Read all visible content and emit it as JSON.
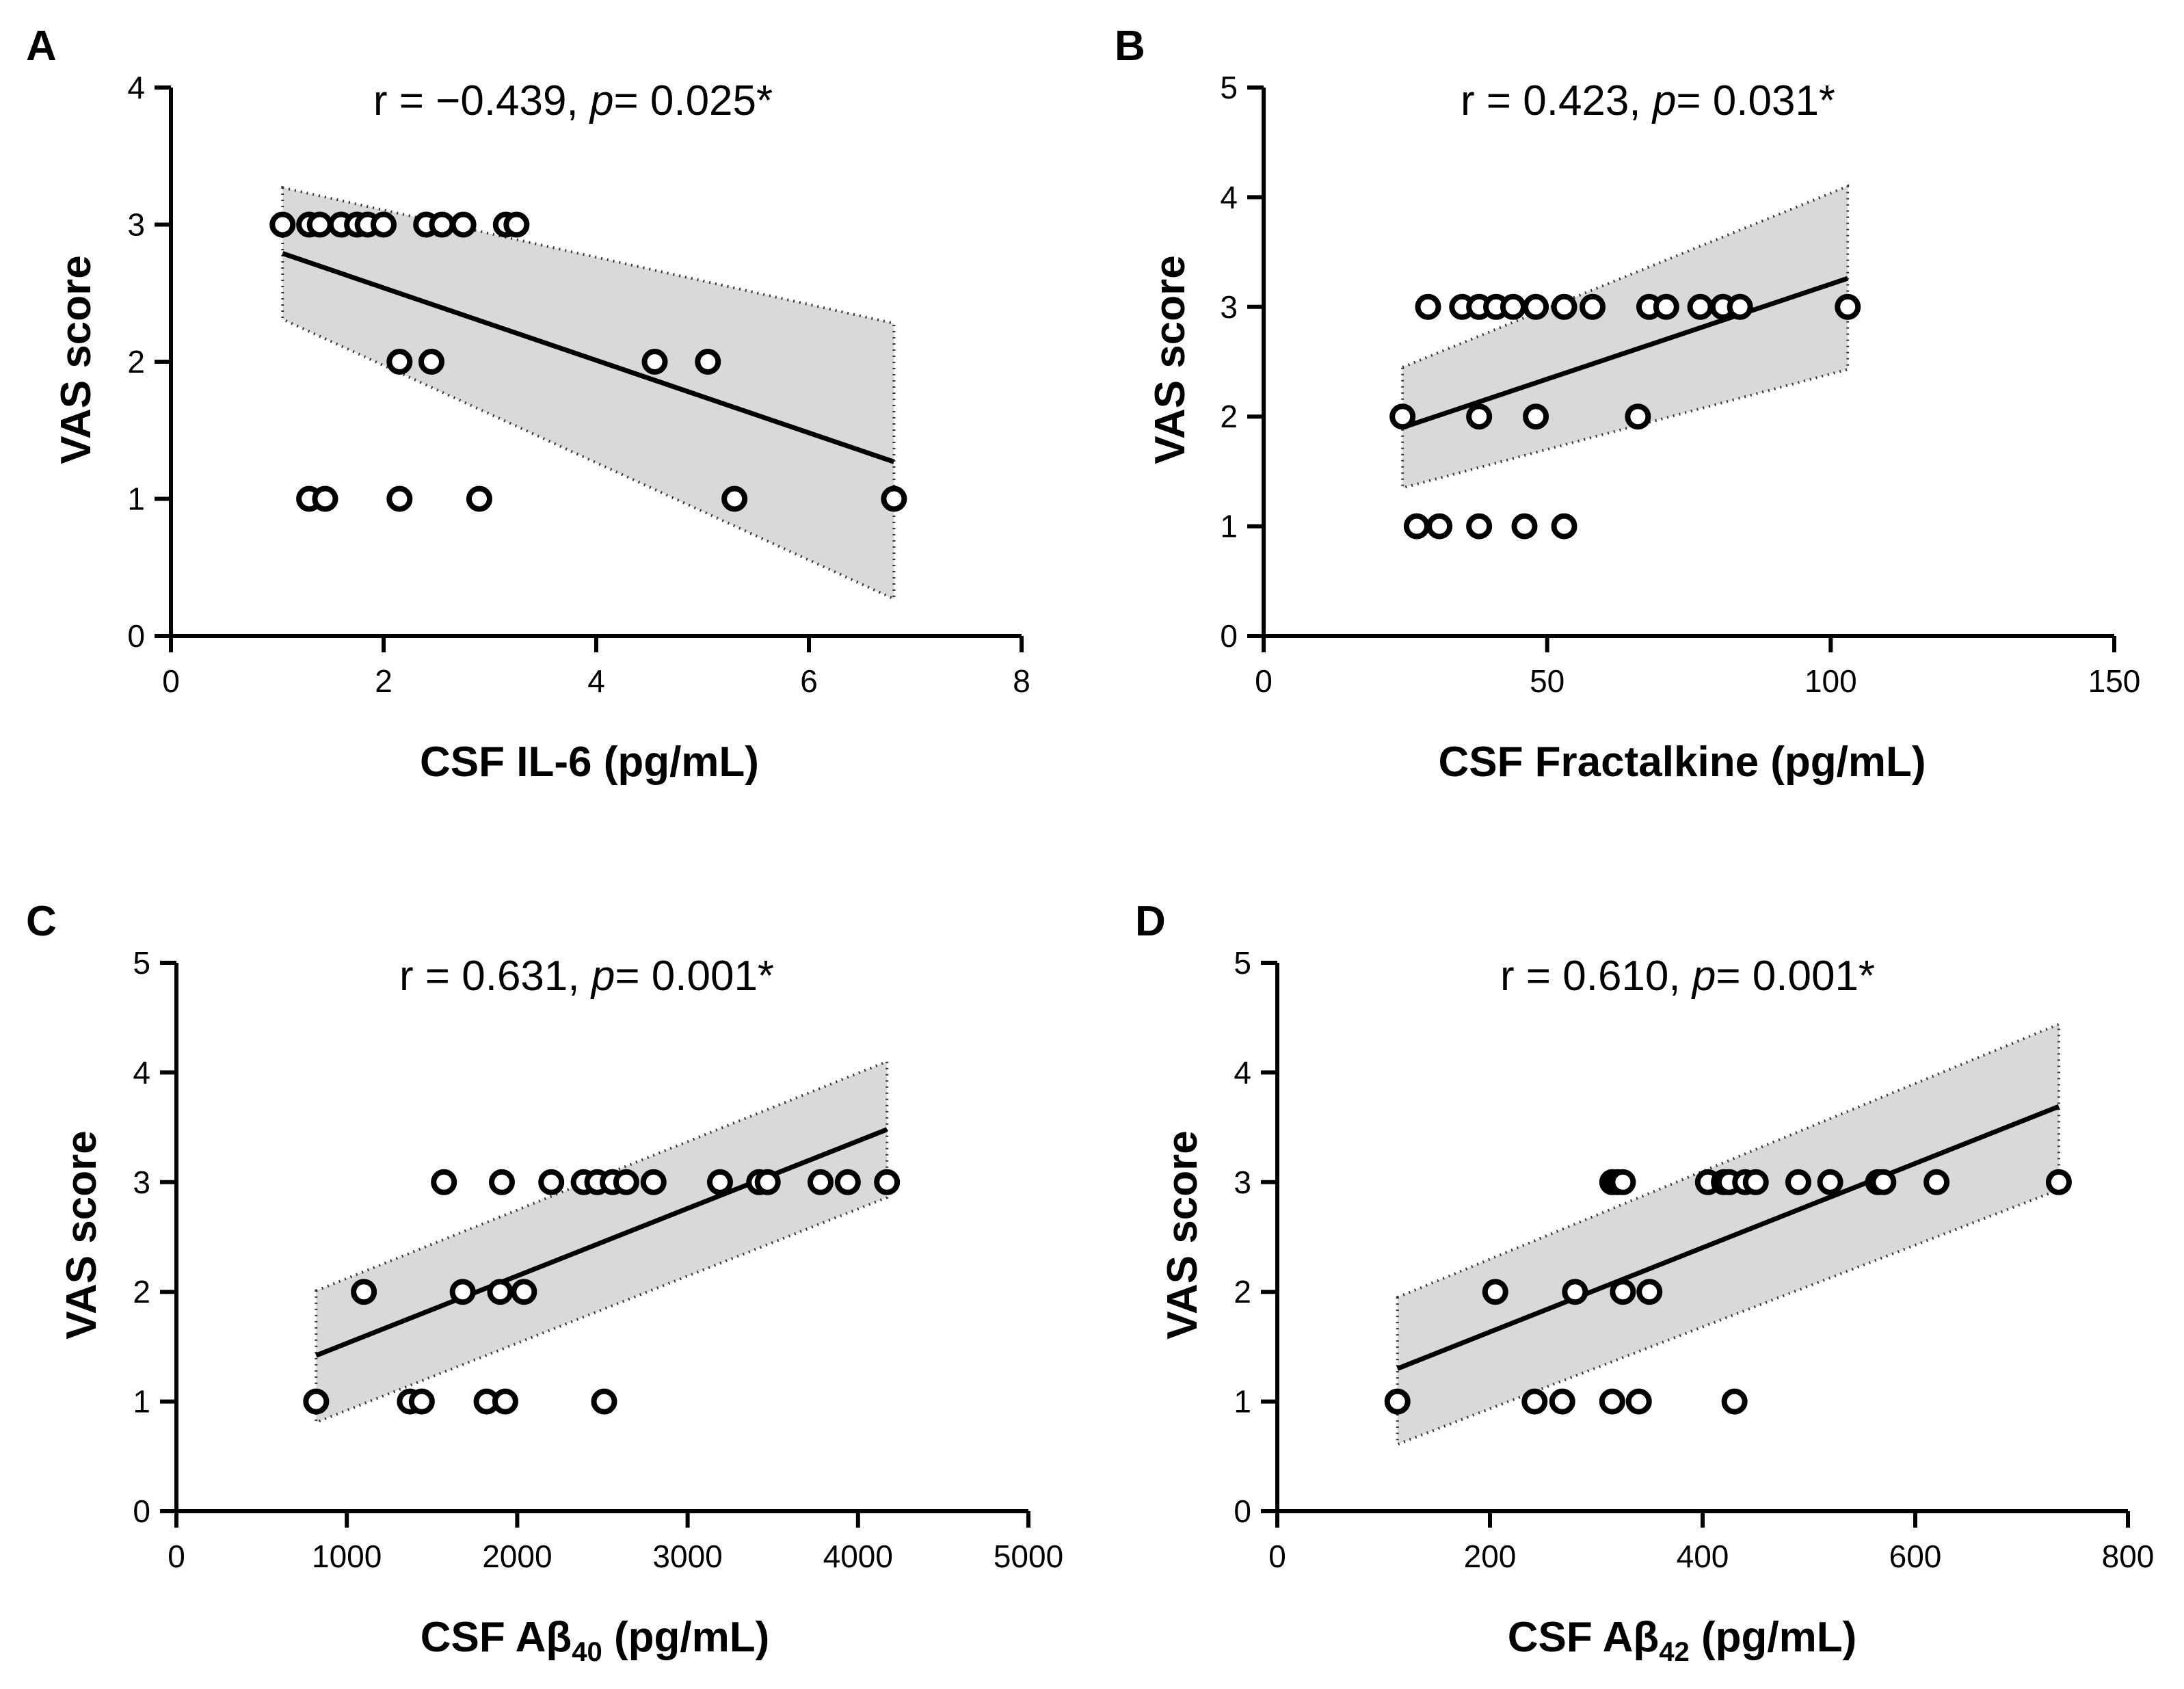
{
  "chart_data": [
    {
      "id": "A",
      "type": "scatter",
      "panel_label": "A",
      "stat_r": "r = −0.439, ",
      "stat_p": "p",
      "stat_rest": "= 0.025*",
      "xlabel": "CSF IL-6 (pg/mL)",
      "xlabel_sub": "",
      "xlabel_tail": "",
      "ylabel": "VAS score",
      "xlim": [
        0,
        8
      ],
      "ylim": [
        0,
        4
      ],
      "xticks": [
        0,
        2,
        4,
        6,
        8
      ],
      "yticks": [
        0,
        1,
        2,
        3,
        4
      ],
      "points": [
        [
          1.05,
          3
        ],
        [
          1.3,
          3
        ],
        [
          1.4,
          3
        ],
        [
          1.6,
          3
        ],
        [
          1.75,
          3
        ],
        [
          1.85,
          3
        ],
        [
          2.0,
          3
        ],
        [
          2.4,
          3
        ],
        [
          2.55,
          3
        ],
        [
          2.75,
          3
        ],
        [
          3.15,
          3
        ],
        [
          3.25,
          3
        ],
        [
          2.15,
          2
        ],
        [
          2.45,
          2
        ],
        [
          4.55,
          2
        ],
        [
          5.05,
          2
        ],
        [
          1.3,
          1
        ],
        [
          1.45,
          1
        ],
        [
          2.15,
          1
        ],
        [
          2.9,
          1
        ],
        [
          5.3,
          1
        ],
        [
          6.8,
          1
        ]
      ],
      "fit": {
        "x0": 1.05,
        "y0": 2.79,
        "x1": 6.8,
        "y1": 1.27
      },
      "band": {
        "x": [
          1.05,
          6.8
        ],
        "upper": [
          3.27,
          2.28
        ],
        "lower": [
          2.31,
          0.27
        ]
      }
    },
    {
      "id": "B",
      "type": "scatter",
      "panel_label": "B",
      "stat_r": "r = 0.423, ",
      "stat_p": "p",
      "stat_rest": "= 0.031*",
      "xlabel": "CSF Fractalkine (pg/mL)",
      "xlabel_sub": "",
      "xlabel_tail": "",
      "ylabel": "VAS score",
      "xlim": [
        0,
        150
      ],
      "ylim": [
        0,
        5
      ],
      "xticks": [
        0,
        50,
        100,
        150
      ],
      "yticks": [
        0,
        1,
        2,
        3,
        4,
        5
      ],
      "points": [
        [
          29,
          3
        ],
        [
          35,
          3
        ],
        [
          38,
          3
        ],
        [
          41,
          3
        ],
        [
          44,
          3
        ],
        [
          48,
          3
        ],
        [
          53,
          3
        ],
        [
          58,
          3
        ],
        [
          68,
          3
        ],
        [
          71,
          3
        ],
        [
          77,
          3
        ],
        [
          81,
          3
        ],
        [
          84,
          3
        ],
        [
          103,
          3
        ],
        [
          24.5,
          2
        ],
        [
          38,
          2
        ],
        [
          48,
          2
        ],
        [
          66,
          2
        ],
        [
          27,
          1
        ],
        [
          31,
          1
        ],
        [
          38,
          1
        ],
        [
          46,
          1
        ],
        [
          53,
          1
        ]
      ],
      "fit": {
        "x0": 24.5,
        "y0": 1.9,
        "x1": 103,
        "y1": 3.26
      },
      "band": {
        "x": [
          24.5,
          103
        ],
        "upper": [
          2.45,
          4.1
        ],
        "lower": [
          1.35,
          2.43
        ]
      }
    },
    {
      "id": "C",
      "type": "scatter",
      "panel_label": "C",
      "stat_r": "r = 0.631, ",
      "stat_p": "p",
      "stat_rest": "= 0.001*",
      "xlabel": "CSF Aβ",
      "xlabel_sub": "40",
      "xlabel_tail": " (pg/mL)",
      "ylabel": "VAS score",
      "xlim": [
        0,
        5000
      ],
      "ylim": [
        0,
        5
      ],
      "xticks": [
        0,
        1000,
        2000,
        3000,
        4000,
        5000
      ],
      "yticks": [
        0,
        1,
        2,
        3,
        4,
        5
      ],
      "points": [
        [
          1570,
          3
        ],
        [
          1910,
          3
        ],
        [
          2200,
          3
        ],
        [
          2390,
          3
        ],
        [
          2470,
          3
        ],
        [
          2560,
          3
        ],
        [
          2640,
          3
        ],
        [
          2800,
          3
        ],
        [
          3190,
          3
        ],
        [
          3420,
          3
        ],
        [
          3470,
          3
        ],
        [
          3780,
          3
        ],
        [
          3940,
          3
        ],
        [
          4170,
          3
        ],
        [
          1100,
          2
        ],
        [
          1680,
          2
        ],
        [
          1900,
          2
        ],
        [
          2040,
          2
        ],
        [
          820,
          1
        ],
        [
          1370,
          1
        ],
        [
          1440,
          1
        ],
        [
          1820,
          1
        ],
        [
          1930,
          1
        ],
        [
          2510,
          1
        ]
      ],
      "fit": {
        "x0": 820,
        "y0": 1.42,
        "x1": 4170,
        "y1": 3.48
      },
      "band": {
        "x": [
          820,
          4170
        ],
        "upper": [
          2.01,
          4.1
        ],
        "lower": [
          0.81,
          2.86
        ]
      }
    },
    {
      "id": "D",
      "type": "scatter",
      "panel_label": "D",
      "stat_r": "r = 0.610, ",
      "stat_p": "p",
      "stat_rest": "= 0.001*",
      "xlabel": "CSF Aβ",
      "xlabel_sub": "42",
      "xlabel_tail": " (pg/mL)",
      "ylabel": "VAS score",
      "xlim": [
        0,
        800
      ],
      "ylim": [
        0,
        5
      ],
      "xticks": [
        0,
        200,
        400,
        600,
        800
      ],
      "yticks": [
        0,
        1,
        2,
        3,
        4,
        5
      ],
      "points": [
        [
          315,
          3
        ],
        [
          320,
          3
        ],
        [
          325,
          3
        ],
        [
          405,
          3
        ],
        [
          420,
          3
        ],
        [
          425,
          3
        ],
        [
          440,
          3
        ],
        [
          450,
          3
        ],
        [
          490,
          3
        ],
        [
          520,
          3
        ],
        [
          565,
          3
        ],
        [
          570,
          3
        ],
        [
          620,
          3
        ],
        [
          735,
          3
        ],
        [
          205,
          2
        ],
        [
          280,
          2
        ],
        [
          325,
          2
        ],
        [
          350,
          2
        ],
        [
          113,
          1
        ],
        [
          242,
          1
        ],
        [
          268,
          1
        ],
        [
          315,
          1
        ],
        [
          340,
          1
        ],
        [
          430,
          1
        ]
      ],
      "fit": {
        "x0": 113,
        "y0": 1.3,
        "x1": 735,
        "y1": 3.69
      },
      "band": {
        "x": [
          113,
          735
        ],
        "upper": [
          1.95,
          4.44
        ],
        "lower": [
          0.61,
          2.93
        ]
      }
    }
  ]
}
